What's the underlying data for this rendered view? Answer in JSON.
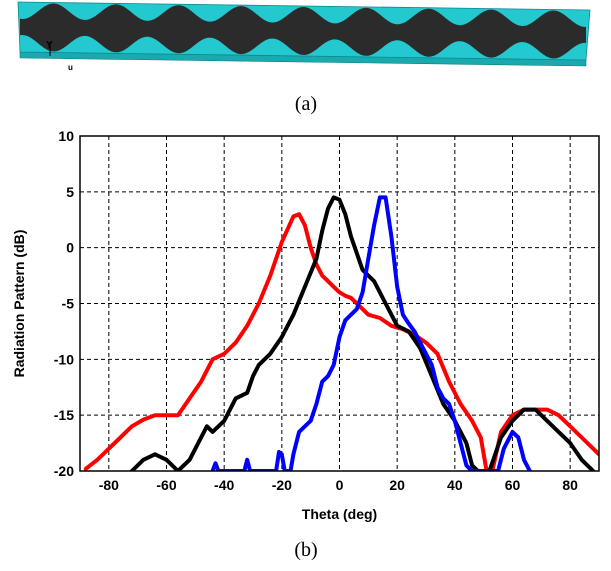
{
  "captions": {
    "a": "(a)",
    "b": "(b)"
  },
  "antenna": {
    "axis_label_y": "Y",
    "axis_label_u": "u",
    "colors": {
      "substrate": "#23c9cf",
      "metal": "#2b2b2b"
    }
  },
  "chart_data": {
    "type": "line",
    "xlabel": "Theta (deg)",
    "ylabel": "Radiation Pattern (dB)",
    "xlim": [
      -90,
      90
    ],
    "ylim": [
      -20,
      10
    ],
    "xticks": [
      -80,
      -60,
      -40,
      -20,
      0,
      20,
      40,
      60,
      80
    ],
    "yticks": [
      -20,
      -15,
      -10,
      -5,
      0,
      5,
      10
    ],
    "grid": true,
    "series": [
      {
        "color": "#ff0000",
        "x": [
          -88,
          -84,
          -80,
          -76,
          -72,
          -68,
          -64,
          -60,
          -56,
          -52,
          -48,
          -44,
          -40,
          -36,
          -32,
          -28,
          -24,
          -20,
          -16,
          -14,
          -12,
          -10,
          -8,
          -6,
          -4,
          -2,
          0,
          2,
          4,
          6,
          8,
          10,
          14,
          18,
          22,
          26,
          30,
          34,
          38,
          42,
          46,
          49,
          51,
          53,
          56,
          60,
          64,
          68,
          72,
          76,
          80,
          84,
          90
        ],
        "y": [
          -19.8,
          -19,
          -18,
          -17,
          -16,
          -15.4,
          -15,
          -15,
          -15,
          -13.5,
          -12,
          -10,
          -9.5,
          -8.5,
          -7,
          -5,
          -2.5,
          0.5,
          2.8,
          3,
          2,
          0,
          -1.5,
          -2.5,
          -3,
          -3.5,
          -4,
          -4.3,
          -4.5,
          -5,
          -5.5,
          -6,
          -6.3,
          -7,
          -7.3,
          -7.8,
          -8.5,
          -9.5,
          -12,
          -14,
          -15.5,
          -17,
          -20,
          -20,
          -16.5,
          -15,
          -14.5,
          -14.5,
          -14.5,
          -15,
          -16,
          -17,
          -18.5
        ]
      },
      {
        "color": "#000000",
        "x": [
          -72,
          -68,
          -64,
          -60,
          -56,
          -52,
          -48,
          -46,
          -44,
          -40,
          -36,
          -32,
          -30,
          -28,
          -24,
          -20,
          -16,
          -12,
          -8,
          -6,
          -4,
          -2,
          0,
          2,
          4,
          8,
          12,
          16,
          20,
          24,
          28,
          32,
          36,
          40,
          44,
          46,
          48,
          52,
          56,
          60,
          64,
          68,
          72,
          76,
          80,
          84,
          88
        ],
        "y": [
          -20,
          -19,
          -18.5,
          -19,
          -20,
          -19,
          -17,
          -16,
          -16.5,
          -15.5,
          -13.5,
          -13,
          -11.5,
          -10.5,
          -9.5,
          -8,
          -6,
          -3.5,
          -1,
          1.5,
          3.5,
          4.5,
          4.3,
          3,
          1,
          -2,
          -3,
          -5,
          -7,
          -7.5,
          -9,
          -11.5,
          -14,
          -15.5,
          -17.5,
          -19.5,
          -20,
          -20,
          -17,
          -15.5,
          -14.5,
          -14.5,
          -15.5,
          -16.5,
          -17.5,
          -19,
          -20
        ]
      },
      {
        "color": "#0000ff",
        "x": [
          -44,
          -43,
          -42,
          -33,
          -32,
          -31,
          -22,
          -21,
          -20,
          -19,
          -17,
          -16,
          -14,
          -12,
          -10,
          -8,
          -6,
          -4,
          -2,
          0,
          2,
          4,
          6,
          8,
          10,
          12,
          14,
          16,
          18,
          20,
          22,
          24,
          26,
          28,
          30,
          32,
          34,
          36,
          38,
          40,
          42,
          44,
          46,
          55,
          57,
          60,
          62,
          64,
          66
        ],
        "y": [
          -20,
          -19.3,
          -20,
          -20,
          -19,
          -20,
          -20,
          -18.3,
          -18.5,
          -20,
          -20,
          -18.5,
          -16.5,
          -16,
          -15.5,
          -14,
          -12,
          -11.5,
          -10.5,
          -8,
          -6.5,
          -6,
          -5.5,
          -4,
          -1,
          2,
          4.5,
          4.5,
          1,
          -3.5,
          -6,
          -6.8,
          -7.5,
          -8.5,
          -9.5,
          -10.5,
          -12.5,
          -13.5,
          -14,
          -15.5,
          -17.5,
          -19.5,
          -20,
          -20,
          -18,
          -16.5,
          -17,
          -19,
          -20
        ]
      }
    ]
  }
}
